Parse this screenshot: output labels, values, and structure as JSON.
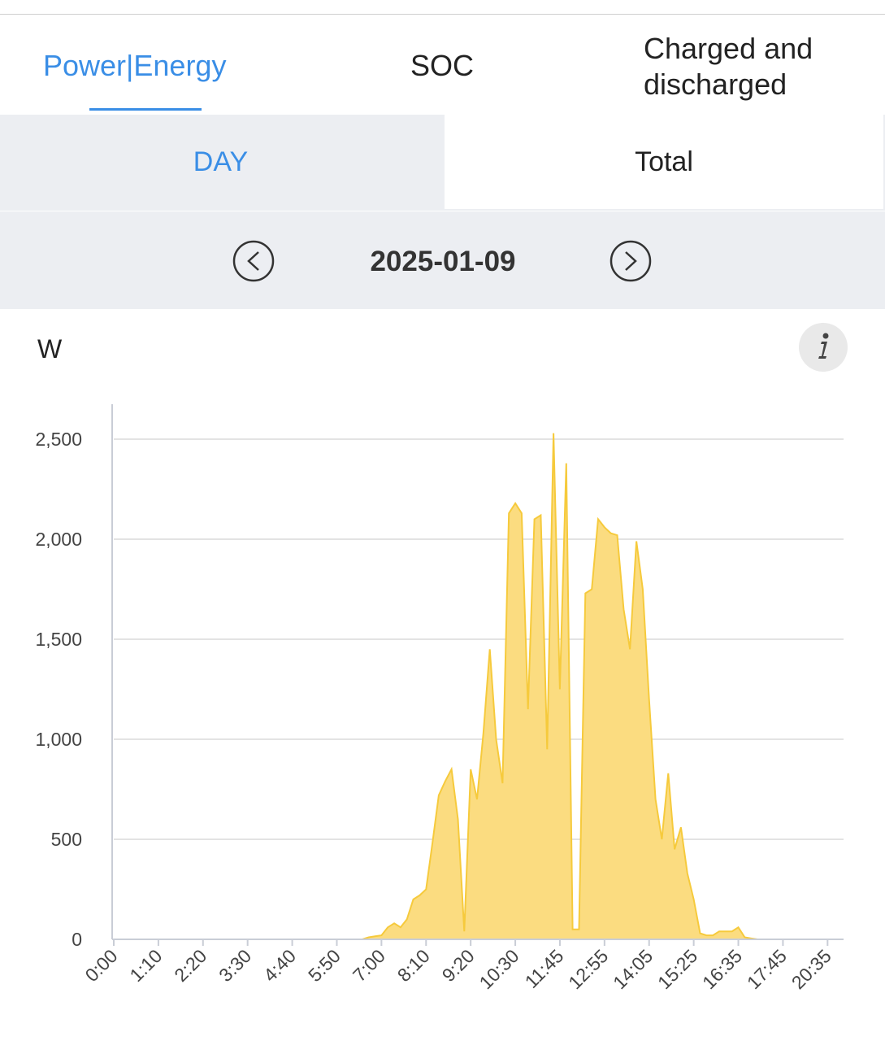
{
  "tabs": [
    "Power|Energy",
    "SOC",
    "Charged and discharged"
  ],
  "period_tabs": [
    "DAY",
    "Total"
  ],
  "date": "2025-01-09",
  "chart_data": {
    "type": "area",
    "y_label": "W",
    "color": "#fbdc80",
    "line_color": "#f6ca3c",
    "grid": true,
    "ylim": [
      0,
      2675
    ],
    "yticks": [
      0,
      500,
      {
        "value": 1000,
        "label": "1,000"
      },
      {
        "value": 1500,
        "label": "1,500"
      },
      {
        "value": 2000,
        "label": "2,000"
      },
      {
        "value": 2500,
        "label": "2,500"
      }
    ],
    "categories": [
      "0:00",
      null,
      null,
      null,
      null,
      null,
      null,
      "1:10",
      null,
      null,
      null,
      null,
      null,
      null,
      "2:20",
      null,
      null,
      null,
      null,
      null,
      null,
      "3:30",
      null,
      null,
      null,
      null,
      null,
      null,
      "4:40",
      null,
      null,
      null,
      null,
      null,
      null,
      "5:50",
      null,
      null,
      null,
      null,
      null,
      null,
      "7:00",
      null,
      null,
      null,
      null,
      null,
      null,
      "8:10",
      null,
      null,
      null,
      null,
      null,
      null,
      "9:20",
      null,
      null,
      null,
      null,
      null,
      null,
      "10:30",
      null,
      null,
      null,
      null,
      null,
      null,
      "11:45",
      null,
      null,
      null,
      null,
      null,
      null,
      "12:55",
      null,
      null,
      null,
      null,
      null,
      null,
      "14:05",
      null,
      null,
      null,
      null,
      null,
      null,
      "15:25",
      null,
      null,
      null,
      null,
      null,
      null,
      "16:35",
      null,
      null,
      null,
      null,
      null,
      null,
      "17:45",
      null,
      null,
      null,
      null,
      null,
      null,
      "20:35",
      null,
      null
    ],
    "values": [
      0,
      0,
      0,
      0,
      0,
      0,
      0,
      0,
      0,
      0,
      0,
      0,
      0,
      0,
      0,
      0,
      0,
      0,
      0,
      0,
      0,
      0,
      0,
      0,
      0,
      0,
      0,
      0,
      0,
      0,
      0,
      0,
      0,
      0,
      0,
      0,
      0,
      0,
      0,
      0,
      10,
      15,
      20,
      60,
      80,
      60,
      100,
      200,
      220,
      250,
      480,
      720,
      790,
      850,
      600,
      40,
      850,
      700,
      1030,
      1450,
      1000,
      780,
      2130,
      2180,
      2130,
      1150,
      2100,
      2120,
      950,
      2530,
      1250,
      2380,
      50,
      50,
      1730,
      1750,
      2100,
      2060,
      2030,
      2020,
      1650,
      1450,
      1990,
      1750,
      1200,
      700,
      500,
      830,
      450,
      560,
      330,
      200,
      30,
      20,
      20,
      40,
      40,
      40,
      60,
      10,
      5,
      0,
      0,
      0,
      0,
      0,
      0,
      0,
      0,
      0,
      0,
      0,
      0,
      0,
      0
    ]
  }
}
